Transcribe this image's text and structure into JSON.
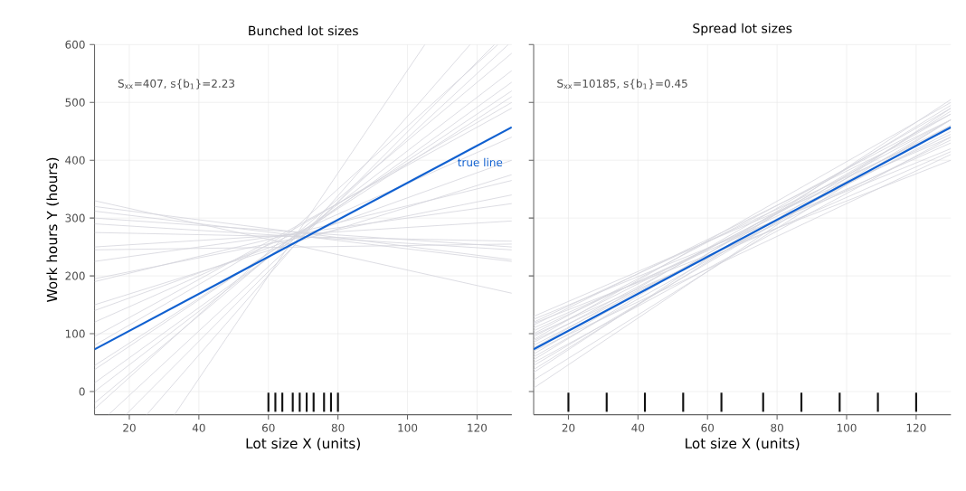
{
  "chart_data": [
    {
      "type": "line",
      "title": "Bunched lot sizes",
      "xlabel": "Lot size X (units)",
      "ylabel": "Work hours Y (hours)",
      "xlim": [
        10,
        130
      ],
      "ylim": [
        -40,
        600
      ],
      "xticks": [
        20,
        40,
        60,
        80,
        100,
        120
      ],
      "yticks": [
        0,
        100,
        200,
        300,
        400,
        500,
        600
      ],
      "grid": true,
      "annotations": [
        "S$_{xx}$=407, s{b$_{1}$}=2.23"
      ],
      "series": [
        {
          "color": "#d4d4dc",
          "x": [
            10,
            130
          ],
          "values": [
            330,
            170
          ]
        },
        {
          "color": "#d4d4dc",
          "x": [
            10,
            130
          ],
          "values": [
            320,
            228
          ]
        },
        {
          "color": "#d4d4dc",
          "x": [
            10,
            130
          ],
          "values": [
            312,
            225
          ]
        },
        {
          "color": "#d4d4dc",
          "x": [
            10,
            130
          ],
          "values": [
            300,
            250
          ]
        },
        {
          "color": "#d4d4dc",
          "x": [
            10,
            130
          ],
          "values": [
            290,
            245
          ]
        },
        {
          "color": "#d4d4dc",
          "x": [
            10,
            130
          ],
          "values": [
            275,
            260
          ]
        },
        {
          "color": "#d4d4dc",
          "x": [
            10,
            130
          ],
          "values": [
            250,
            295
          ]
        },
        {
          "color": "#d4d4dc",
          "x": [
            10,
            130
          ],
          "values": [
            245,
            255
          ]
        },
        {
          "color": "#d4d4dc",
          "x": [
            10,
            130
          ],
          "values": [
            225,
            325
          ]
        },
        {
          "color": "#d4d4dc",
          "x": [
            10,
            130
          ],
          "values": [
            195,
            340
          ]
        },
        {
          "color": "#d4d4dc",
          "x": [
            10,
            130
          ],
          "values": [
            190,
            365
          ]
        },
        {
          "color": "#d4d4dc",
          "x": [
            10,
            130
          ],
          "values": [
            150,
            375
          ]
        },
        {
          "color": "#d4d4dc",
          "x": [
            10,
            130
          ],
          "values": [
            140,
            400
          ]
        },
        {
          "color": "#d4d4dc",
          "x": [
            10,
            130
          ],
          "values": [
            120,
            440
          ]
        },
        {
          "color": "#d4d4dc",
          "x": [
            10,
            130
          ],
          "values": [
            95,
            490
          ]
        },
        {
          "color": "#d4d4dc",
          "x": [
            10,
            130
          ],
          "values": [
            80,
            500
          ]
        },
        {
          "color": "#d4d4dc",
          "x": [
            10,
            130
          ],
          "values": [
            45,
            510
          ]
        },
        {
          "color": "#d4d4dc",
          "x": [
            10,
            130
          ],
          "values": [
            38,
            520
          ]
        },
        {
          "color": "#d4d4dc",
          "x": [
            10,
            130
          ],
          "values": [
            15,
            535
          ]
        },
        {
          "color": "#d4d4dc",
          "x": [
            10,
            130
          ],
          "values": [
            0,
            555
          ]
        },
        {
          "color": "#d4d4dc",
          "x": [
            10,
            130
          ],
          "values": [
            -20,
            585
          ]
        },
        {
          "color": "#d4d4dc",
          "x": [
            10,
            126
          ],
          "values": [
            -30,
            600
          ]
        },
        {
          "color": "#d4d4dc",
          "x": [
            14,
            129
          ],
          "values": [
            -40,
            600
          ]
        },
        {
          "color": "#d4d4dc",
          "x": [
            19,
            125
          ],
          "values": [
            -40,
            600
          ]
        },
        {
          "color": "#d4d4dc",
          "x": [
            25,
            118
          ],
          "values": [
            -40,
            600
          ]
        },
        {
          "color": "#d4d4dc",
          "x": [
            33,
            105
          ],
          "values": [
            -40,
            600
          ]
        },
        {
          "name": "true line",
          "color": "#1060d0",
          "x": [
            10,
            130
          ],
          "values": [
            73,
            457
          ]
        },
        {
          "color": "#111111",
          "x": [
            60,
            60
          ],
          "values": [
            -35,
            -2
          ]
        },
        {
          "color": "#111111",
          "x": [
            62,
            62
          ],
          "values": [
            -35,
            -2
          ]
        },
        {
          "color": "#111111",
          "x": [
            64,
            64
          ],
          "values": [
            -35,
            -2
          ]
        },
        {
          "color": "#111111",
          "x": [
            67,
            67
          ],
          "values": [
            -35,
            -2
          ]
        },
        {
          "color": "#111111",
          "x": [
            69,
            69
          ],
          "values": [
            -35,
            -2
          ]
        },
        {
          "color": "#111111",
          "x": [
            71,
            71
          ],
          "values": [
            -35,
            -2
          ]
        },
        {
          "color": "#111111",
          "x": [
            73,
            73
          ],
          "values": [
            -35,
            -2
          ]
        },
        {
          "color": "#111111",
          "x": [
            76,
            76
          ],
          "values": [
            -35,
            -2
          ]
        },
        {
          "color": "#111111",
          "x": [
            78,
            78
          ],
          "values": [
            -35,
            -2
          ]
        },
        {
          "color": "#111111",
          "x": [
            80,
            80
          ],
          "values": [
            -35,
            -2
          ]
        }
      ]
    },
    {
      "type": "line",
      "title": "Spread lot sizes",
      "xlabel": "Lot size X (units)",
      "xlim": [
        10,
        130
      ],
      "ylim": [
        -40,
        600
      ],
      "xticks": [
        20,
        40,
        60,
        80,
        100,
        120
      ],
      "yticks": [
        0,
        100,
        200,
        300,
        400,
        500,
        600
      ],
      "grid": true,
      "tick_labels": "x",
      "annotations": [
        "S$_{xx}$=10185, s{b$_{1}$}=0.45"
      ],
      "series": [
        {
          "color": "#d4d4dc",
          "x": [
            10,
            130
          ],
          "values": [
            130,
            440
          ]
        },
        {
          "color": "#d4d4dc",
          "x": [
            10,
            130
          ],
          "values": [
            125,
            420
          ]
        },
        {
          "color": "#d4d4dc",
          "x": [
            10,
            130
          ],
          "values": [
            120,
            455
          ]
        },
        {
          "color": "#d4d4dc",
          "x": [
            10,
            130
          ],
          "values": [
            118,
            400
          ]
        },
        {
          "color": "#d4d4dc",
          "x": [
            10,
            130
          ],
          "values": [
            115,
            470
          ]
        },
        {
          "color": "#d4d4dc",
          "x": [
            10,
            130
          ],
          "values": [
            110,
            430
          ]
        },
        {
          "color": "#d4d4dc",
          "x": [
            10,
            130
          ],
          "values": [
            105,
            445
          ]
        },
        {
          "color": "#d4d4dc",
          "x": [
            10,
            130
          ],
          "values": [
            100,
            480
          ]
        },
        {
          "color": "#d4d4dc",
          "x": [
            10,
            130
          ],
          "values": [
            98,
            415
          ]
        },
        {
          "color": "#d4d4dc",
          "x": [
            10,
            130
          ],
          "values": [
            95,
            460
          ]
        },
        {
          "color": "#d4d4dc",
          "x": [
            10,
            130
          ],
          "values": [
            90,
            500
          ]
        },
        {
          "color": "#d4d4dc",
          "x": [
            10,
            130
          ],
          "values": [
            88,
            435
          ]
        },
        {
          "color": "#d4d4dc",
          "x": [
            10,
            130
          ],
          "values": [
            85,
            470
          ]
        },
        {
          "color": "#d4d4dc",
          "x": [
            10,
            130
          ],
          "values": [
            80,
            450
          ]
        },
        {
          "color": "#d4d4dc",
          "x": [
            10,
            130
          ],
          "values": [
            75,
            490
          ]
        },
        {
          "color": "#d4d4dc",
          "x": [
            10,
            130
          ],
          "values": [
            70,
            410
          ]
        },
        {
          "color": "#d4d4dc",
          "x": [
            10,
            130
          ],
          "values": [
            65,
            480
          ]
        },
        {
          "color": "#d4d4dc",
          "x": [
            10,
            130
          ],
          "values": [
            60,
            460
          ]
        },
        {
          "color": "#d4d4dc",
          "x": [
            10,
            130
          ],
          "values": [
            55,
            495
          ]
        },
        {
          "color": "#d4d4dc",
          "x": [
            10,
            130
          ],
          "values": [
            50,
            440
          ]
        },
        {
          "color": "#d4d4dc",
          "x": [
            10,
            130
          ],
          "values": [
            45,
            470
          ]
        },
        {
          "color": "#d4d4dc",
          "x": [
            10,
            130
          ],
          "values": [
            38,
            485
          ]
        },
        {
          "color": "#d4d4dc",
          "x": [
            10,
            130
          ],
          "values": [
            33,
            505
          ]
        },
        {
          "color": "#d4d4dc",
          "x": [
            10,
            130
          ],
          "values": [
            20,
            470
          ]
        },
        {
          "color": "#d4d4dc",
          "x": [
            10,
            130
          ],
          "values": [
            6,
            490
          ]
        },
        {
          "color": "#1060d0",
          "x": [
            10,
            130
          ],
          "values": [
            73,
            457
          ]
        },
        {
          "color": "#111111",
          "x": [
            20,
            20
          ],
          "values": [
            -35,
            -2
          ]
        },
        {
          "color": "#111111",
          "x": [
            31,
            31
          ],
          "values": [
            -35,
            -2
          ]
        },
        {
          "color": "#111111",
          "x": [
            42,
            42
          ],
          "values": [
            -35,
            -2
          ]
        },
        {
          "color": "#111111",
          "x": [
            53,
            53
          ],
          "values": [
            -35,
            -2
          ]
        },
        {
          "color": "#111111",
          "x": [
            64,
            64
          ],
          "values": [
            -35,
            -2
          ]
        },
        {
          "color": "#111111",
          "x": [
            76,
            76
          ],
          "values": [
            -35,
            -2
          ]
        },
        {
          "color": "#111111",
          "x": [
            87,
            87
          ],
          "values": [
            -35,
            -2
          ]
        },
        {
          "color": "#111111",
          "x": [
            98,
            98
          ],
          "values": [
            -35,
            -2
          ]
        },
        {
          "color": "#111111",
          "x": [
            109,
            109
          ],
          "values": [
            -35,
            -2
          ]
        },
        {
          "color": "#111111",
          "x": [
            120,
            120
          ],
          "values": [
            -35,
            -2
          ]
        }
      ]
    }
  ]
}
